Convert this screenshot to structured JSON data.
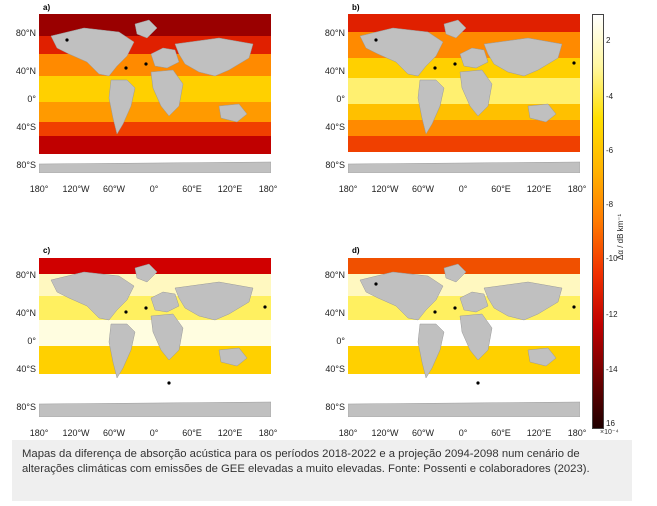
{
  "figure": {
    "panel_labels": [
      "a)",
      "b)",
      "c)",
      "d)"
    ],
    "y_ticks": [
      "80°N",
      "40°N",
      "0°",
      "40°S",
      "80°S"
    ],
    "x_ticks": [
      "180°",
      "120°W",
      "60°W",
      "0°",
      "60°E",
      "120°E",
      "180°"
    ],
    "colorbar": {
      "ticks": [
        "2",
        "-4",
        "-6",
        "-8",
        "-10",
        "-12",
        "-14",
        "16"
      ],
      "unit_label": "Δα / dB km⁻¹",
      "multiplier": "×10⁻⁴",
      "colors": [
        "#ffffff",
        "#fff7a0",
        "#ffe000",
        "#ffb300",
        "#ff7a00",
        "#f03000",
        "#c00000",
        "#700000",
        "#200000"
      ]
    }
  },
  "caption": {
    "text": "Mapas da diferença de absorção acústica para os períodos 2018-2022 e a projeção 2094-2098 num cenário de alterações climáticas com emissões de GEE elevadas a muito elevadas. Fonte: Possenti e colaboradores (2023)."
  }
}
